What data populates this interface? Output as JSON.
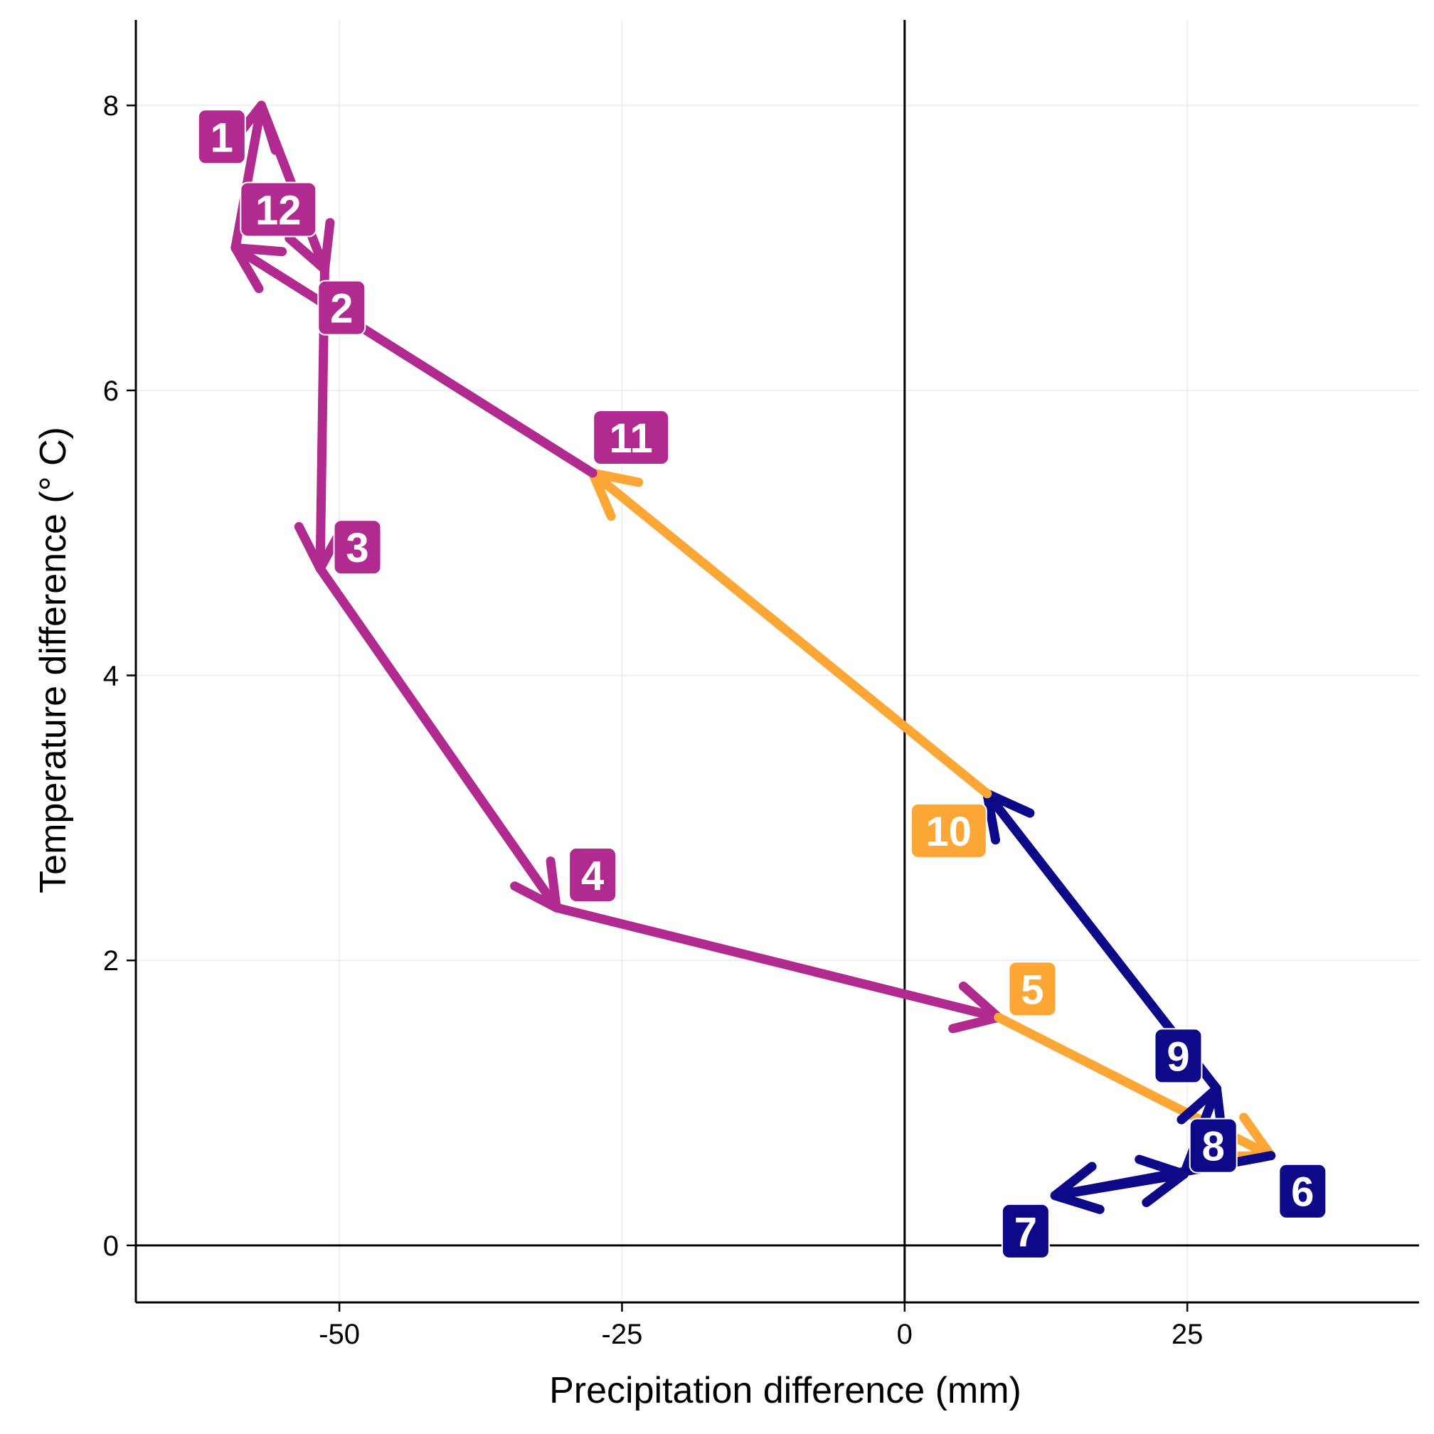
{
  "chart_data": {
    "type": "line",
    "xlabel": "Precipitation difference (mm)",
    "ylabel": "Temperature difference (° C)",
    "xlim": [
      -68,
      45.5
    ],
    "ylim": [
      -0.4,
      8.6
    ],
    "x_ticks": [
      -50,
      -25,
      0,
      25
    ],
    "x_tick_labels": [
      "-50",
      "-25",
      "0",
      "25"
    ],
    "y_ticks": [
      0,
      2,
      4,
      6,
      8
    ],
    "y_tick_labels": [
      "0",
      "2",
      "4",
      "6",
      "8"
    ],
    "grid": true,
    "reference_lines": {
      "x": 0,
      "y": 0
    },
    "colors": {
      "warm": "#B12A90",
      "mild": "#FCA636",
      "cool": "#0D0887"
    },
    "points": [
      {
        "month": "1",
        "x": -56.9,
        "y": 8.0,
        "color": "#B12A90"
      },
      {
        "month": "2",
        "x": -51.3,
        "y": 6.85,
        "color": "#B12A90"
      },
      {
        "month": "3",
        "x": -51.7,
        "y": 4.75,
        "color": "#B12A90"
      },
      {
        "month": "4",
        "x": -30.8,
        "y": 2.37,
        "color": "#B12A90"
      },
      {
        "month": "5",
        "x": 8.3,
        "y": 1.6,
        "color": "#FCA636"
      },
      {
        "month": "6",
        "x": 32.4,
        "y": 0.63,
        "color": "#0D0887"
      },
      {
        "month": "7",
        "x": 13.3,
        "y": 0.35,
        "color": "#0D0887"
      },
      {
        "month": "8",
        "x": 24.7,
        "y": 0.5,
        "color": "#0D0887"
      },
      {
        "month": "9",
        "x": 27.6,
        "y": 1.1,
        "color": "#0D0887"
      },
      {
        "month": "10",
        "x": 7.3,
        "y": 3.17,
        "color": "#FCA636"
      },
      {
        "month": "11",
        "x": -27.6,
        "y": 5.42,
        "color": "#B12A90"
      },
      {
        "month": "12",
        "x": -59.2,
        "y": 7.0,
        "color": "#B12A90"
      }
    ],
    "segments": [
      {
        "from": "1",
        "to": "2",
        "color": "#B12A90"
      },
      {
        "from": "2",
        "to": "3",
        "color": "#B12A90"
      },
      {
        "from": "3",
        "to": "4",
        "color": "#B12A90"
      },
      {
        "from": "4",
        "to": "5",
        "color": "#B12A90"
      },
      {
        "from": "5",
        "to": "6",
        "color": "#FCA636"
      },
      {
        "from": "6",
        "to": "7",
        "color": "#0D0887"
      },
      {
        "from": "7",
        "to": "8",
        "color": "#0D0887"
      },
      {
        "from": "8",
        "to": "9",
        "color": "#0D0887"
      },
      {
        "from": "9",
        "to": "10",
        "color": "#0D0887"
      },
      {
        "from": "10",
        "to": "11",
        "color": "#FCA636"
      },
      {
        "from": "11",
        "to": "12",
        "color": "#B12A90"
      },
      {
        "from": "12",
        "to": "1",
        "color": "#B12A90"
      }
    ],
    "labels": [
      {
        "text": "1",
        "x": -60.4,
        "y": 7.78,
        "color": "#B12A90"
      },
      {
        "text": "2",
        "x": -49.8,
        "y": 6.58,
        "color": "#B12A90"
      },
      {
        "text": "3",
        "x": -48.4,
        "y": 4.9,
        "color": "#B12A90"
      },
      {
        "text": "4",
        "x": -27.6,
        "y": 2.6,
        "color": "#B12A90"
      },
      {
        "text": "5",
        "x": 11.3,
        "y": 1.8,
        "color": "#FCA636"
      },
      {
        "text": "6",
        "x": 35.2,
        "y": 0.38,
        "color": "#0D0887"
      },
      {
        "text": "7",
        "x": 10.7,
        "y": 0.1,
        "color": "#0D0887"
      },
      {
        "text": "8",
        "x": 27.3,
        "y": 0.7,
        "color": "#0D0887"
      },
      {
        "text": "9",
        "x": 24.2,
        "y": 1.33,
        "color": "#0D0887"
      },
      {
        "text": "10",
        "x": 3.9,
        "y": 2.91,
        "color": "#FCA636"
      },
      {
        "text": "11",
        "x": -24.2,
        "y": 5.67,
        "color": "#B12A90"
      },
      {
        "text": "12",
        "x": -55.4,
        "y": 7.27,
        "color": "#B12A90"
      }
    ]
  }
}
